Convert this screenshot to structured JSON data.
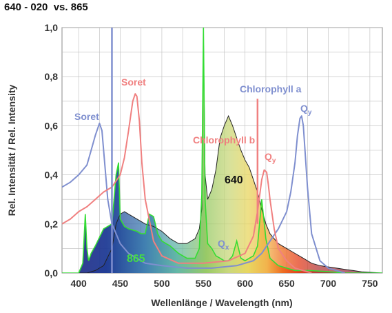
{
  "title": "640 - 020  vs. 865",
  "colors": {
    "chlorophyll_a": "#7f8fcf",
    "chlorophyll_b": "#f08080",
    "spectrum_865_outline": "#33dd33",
    "spectrum_640_outline": "#222222",
    "grid": "#bbbbbb"
  },
  "chart_data": {
    "type": "line",
    "title": "640 - 020  vs. 865",
    "xlabel": "Wellenlänge / Wavelength (nm)",
    "ylabel": "Rel. Intensität / Rel. Intensity",
    "xlim": [
      380,
      765
    ],
    "ylim": [
      0,
      1.0
    ],
    "grid": true,
    "x_ticks": [
      "400",
      "450",
      "500",
      "550",
      "600",
      "650",
      "700",
      "750"
    ],
    "y_ticks": [
      "0,0",
      "0,2",
      "0,4",
      "0,6",
      "0,8",
      "1,0"
    ],
    "series": [
      {
        "name": "640",
        "x": [
          380,
          410,
          420,
          430,
          440,
          445,
          450,
          455,
          460,
          470,
          480,
          490,
          500,
          510,
          520,
          530,
          540,
          545,
          548,
          550,
          552,
          555,
          560,
          565,
          570,
          575,
          580,
          585,
          590,
          595,
          600,
          605,
          610,
          615,
          620,
          625,
          630,
          640,
          650,
          660,
          670,
          680,
          690,
          700,
          710,
          720,
          730,
          740,
          765
        ],
        "y": [
          0,
          0,
          0.01,
          0.03,
          0.1,
          0.2,
          0.24,
          0.25,
          0.24,
          0.22,
          0.2,
          0.19,
          0.17,
          0.14,
          0.12,
          0.12,
          0.14,
          0.18,
          0.26,
          0.98,
          0.4,
          0.3,
          0.34,
          0.42,
          0.55,
          0.6,
          0.64,
          0.6,
          0.55,
          0.5,
          0.46,
          0.43,
          0.38,
          0.33,
          0.26,
          0.2,
          0.16,
          0.12,
          0.1,
          0.08,
          0.06,
          0.04,
          0.03,
          0.025,
          0.02,
          0.015,
          0.01,
          0.005,
          0
        ]
      },
      {
        "name": "865",
        "x": [
          380,
          390,
          400,
          405,
          408,
          410,
          412,
          415,
          420,
          430,
          440,
          445,
          448,
          450,
          455,
          460,
          470,
          475,
          480,
          485,
          490,
          495,
          500,
          510,
          520,
          530,
          540,
          545,
          548,
          550,
          552,
          555,
          560,
          565,
          570,
          575,
          580,
          585,
          590,
          595,
          600,
          610,
          615,
          620,
          625,
          630,
          640,
          650,
          660,
          680,
          700,
          720,
          740,
          765
        ],
        "y": [
          0,
          0,
          0,
          0.04,
          0.24,
          0.1,
          0.05,
          0.08,
          0.11,
          0.18,
          0.2,
          0.4,
          0.45,
          0.22,
          0.19,
          0.18,
          0.17,
          0.16,
          0.16,
          0.24,
          0.23,
          0.16,
          0.13,
          0.11,
          0.08,
          0.06,
          0.06,
          0.1,
          0.32,
          1.0,
          0.3,
          0.12,
          0.1,
          0.07,
          0.06,
          0.05,
          0.05,
          0.07,
          0.13,
          0.06,
          0.05,
          0.07,
          0.11,
          0.3,
          0.14,
          0.06,
          0.03,
          0.02,
          0.01,
          0.01,
          0.005,
          0,
          0,
          0
        ]
      },
      {
        "name": "Chlorophyll a",
        "x": [
          380,
          390,
          400,
          410,
          415,
          420,
          425,
          428,
          430,
          433,
          435,
          440,
          450,
          460,
          470,
          480,
          500,
          530,
          560,
          590,
          610,
          620,
          630,
          640,
          650,
          655,
          660,
          663,
          666,
          668,
          670,
          672,
          675,
          680,
          690,
          700,
          720
        ],
        "y": [
          0.35,
          0.37,
          0.4,
          0.44,
          0.5,
          0.56,
          0.61,
          0.58,
          0.5,
          0.38,
          0.3,
          0.2,
          0.12,
          0.08,
          0.06,
          0.04,
          0.03,
          0.02,
          0.02,
          0.03,
          0.05,
          0.08,
          0.13,
          0.18,
          0.25,
          0.33,
          0.45,
          0.56,
          0.63,
          0.64,
          0.6,
          0.5,
          0.35,
          0.16,
          0.05,
          0.02,
          0
        ]
      },
      {
        "name": "Chlorophyll b",
        "x": [
          380,
          390,
          400,
          410,
          420,
          430,
          440,
          450,
          455,
          460,
          465,
          468,
          470,
          473,
          476,
          480,
          490,
          500,
          520,
          550,
          580,
          600,
          610,
          615,
          620,
          623,
          626,
          628,
          630,
          635,
          640,
          650,
          660,
          680
        ],
        "y": [
          0.2,
          0.22,
          0.25,
          0.27,
          0.3,
          0.33,
          0.35,
          0.4,
          0.47,
          0.58,
          0.7,
          0.73,
          0.72,
          0.62,
          0.45,
          0.3,
          0.13,
          0.07,
          0.04,
          0.04,
          0.05,
          0.08,
          0.15,
          0.25,
          0.38,
          0.42,
          0.41,
          0.36,
          0.3,
          0.18,
          0.1,
          0.05,
          0.02,
          0
        ]
      }
    ],
    "annotations": [
      {
        "text": "Soret",
        "series": "Chlorophyll a"
      },
      {
        "text": "Soret",
        "series": "Chlorophyll b"
      },
      {
        "text": "Chlorophyll a",
        "series": "Chlorophyll a"
      },
      {
        "text": "Chlorophyll b",
        "series": "Chlorophyll b"
      },
      {
        "text": "Q",
        "sub": "y",
        "series": "Chlorophyll a"
      },
      {
        "text": "Q",
        "sub": "y",
        "series": "Chlorophyll b"
      },
      {
        "text": "Q",
        "sub": "x",
        "series": "Chlorophyll a"
      },
      {
        "text": "640",
        "series": "640"
      },
      {
        "text": "865",
        "series": "865"
      }
    ]
  }
}
